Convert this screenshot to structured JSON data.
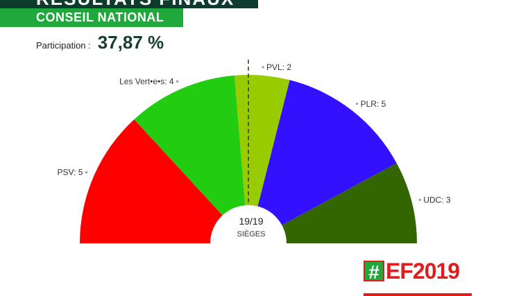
{
  "header": {
    "title": "RÉSULTATS FINAUX",
    "subtitle": "CONSEIL NATIONAL",
    "participation_label": "Participation :",
    "participation_value": "37,87 %"
  },
  "chart_data": {
    "type": "pie",
    "variant": "parliament-semicircle",
    "total_seats": 19,
    "center_count": "19/19",
    "center_unit": "SIÈGES",
    "series": [
      {
        "name": "PSV",
        "label": "PSV: 5",
        "value": 5,
        "color": "#ff0000"
      },
      {
        "name": "Les Vert•e•s",
        "label": "Les Vert•e•s: 4",
        "value": 4,
        "color": "#22cc11"
      },
      {
        "name": "PVL",
        "label": "PVL: 2",
        "value": 2,
        "color": "#99cc00"
      },
      {
        "name": "PLR",
        "label": "PLR: 5",
        "value": 5,
        "color": "#3311ff"
      },
      {
        "name": "UDC",
        "label": "UDC: 3",
        "value": 3,
        "color": "#336600"
      }
    ],
    "majority_line": true
  },
  "logo": {
    "hash": "#",
    "text": "EF2019"
  }
}
